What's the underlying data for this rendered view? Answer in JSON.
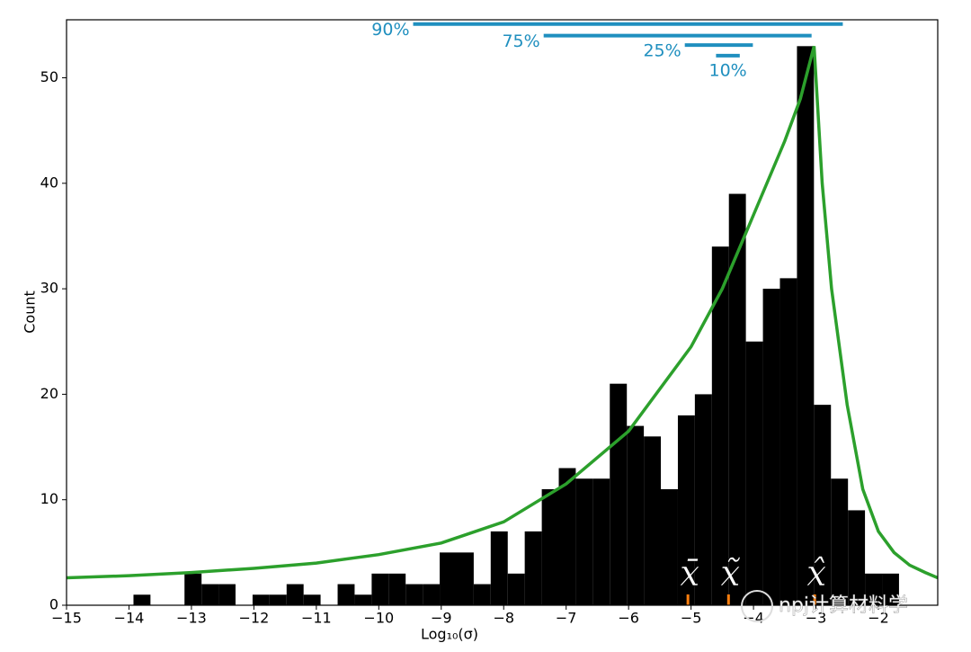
{
  "chart_data": {
    "type": "histogram",
    "xlabel": "Log₁₀(σ)",
    "ylabel": "Count",
    "bins": [
      -13.928,
      -13.656,
      -13.383,
      -13.111,
      -12.838,
      -12.566,
      -12.294,
      -12.021,
      -11.749,
      -11.476,
      -11.204,
      -10.932,
      -10.659,
      -10.387,
      -10.114,
      -9.842,
      -9.57,
      -9.297,
      -9.025,
      -8.752,
      -8.48,
      -8.208,
      -7.935,
      -7.663,
      -7.39,
      -7.118,
      -6.846,
      -6.573,
      -6.301,
      -6.028,
      -5.756,
      -5.484,
      -5.211,
      -4.939,
      -4.666,
      -4.394,
      -4.122,
      -3.849,
      -3.577,
      -3.304,
      -3.032,
      -2.76,
      -2.487,
      -2.215,
      -1.942,
      -1.67
    ],
    "values": [
      1,
      0,
      0,
      3,
      2,
      2,
      0,
      1,
      1,
      2,
      1,
      0,
      2,
      1,
      3,
      3,
      2,
      2,
      5,
      5,
      2,
      7,
      3,
      7,
      11,
      13,
      12,
      12,
      21,
      17,
      16,
      11,
      18,
      20,
      34,
      39,
      25,
      30,
      31,
      53,
      19,
      12,
      9,
      3,
      3
    ],
    "color": "#000000",
    "curve": {
      "color": "#2ca02c",
      "x": [
        -15,
        -14,
        -13,
        -12,
        -11,
        -10,
        -9,
        -8,
        -7,
        -6,
        -5,
        -4.5,
        -4,
        -3.5,
        -3.25,
        -3.03,
        -2.9,
        -2.75,
        -2.5,
        -2.25,
        -2,
        -1.75,
        -1.5,
        -1.25,
        -1.05
      ],
      "values": [
        2.6,
        2.8,
        3.1,
        3.5,
        4.0,
        4.8,
        5.9,
        7.9,
        11.5,
        16.5,
        24.5,
        30,
        37,
        44,
        48,
        53,
        40,
        30,
        19,
        11,
        7,
        5,
        3.8,
        3.1,
        2.6
      ]
    },
    "percentile_bars": {
      "color": "#1f8fbf",
      "items": [
        {
          "label": "90%",
          "x": [
            -9.45,
            -2.57
          ],
          "y": 55.1
        },
        {
          "label": "75%",
          "x": [
            -7.36,
            -3.07
          ],
          "y": 54.0
        },
        {
          "label": "25%",
          "x": [
            -5.1,
            -4.01
          ],
          "y": 53.1
        },
        {
          "label": "10%",
          "x": [
            -4.6,
            -4.22
          ],
          "y": 52.1
        }
      ]
    },
    "markers": {
      "color": "#ff7f0e",
      "items": [
        {
          "label": "x̄",
          "x": -5.05
        },
        {
          "label": "x̃",
          "x": -4.4
        },
        {
          "label": "x̂",
          "x": -3.02
        }
      ]
    },
    "xlim": [
      -15,
      -1.05
    ],
    "ylim": [
      0,
      55.5
    ],
    "xticks": [
      {
        "value": -15,
        "label": "−15"
      },
      {
        "value": -14,
        "label": "−14"
      },
      {
        "value": -13,
        "label": "−13"
      },
      {
        "value": -12,
        "label": "−12"
      },
      {
        "value": -11,
        "label": "−11"
      },
      {
        "value": -10,
        "label": "−10"
      },
      {
        "value": -9,
        "label": "−9"
      },
      {
        "value": -8,
        "label": "−8"
      },
      {
        "value": -7,
        "label": "−7"
      },
      {
        "value": -6,
        "label": "−6"
      },
      {
        "value": -5,
        "label": "−5"
      },
      {
        "value": -4,
        "label": "−4"
      },
      {
        "value": -3,
        "label": "−3"
      },
      {
        "value": -2,
        "label": "−2"
      }
    ],
    "yticks": [
      0,
      10,
      20,
      30,
      40,
      50
    ],
    "grid": false
  },
  "watermark": "npj计算材料学"
}
